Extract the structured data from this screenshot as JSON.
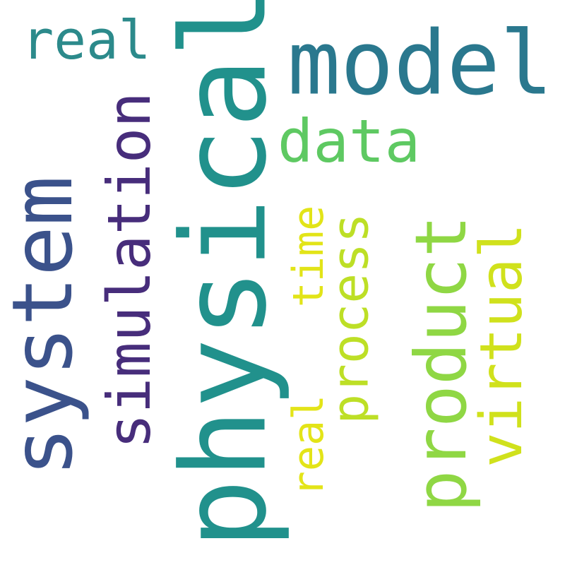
{
  "words": [
    {
      "key": "physical",
      "text": "physical",
      "color": "#21918c"
    },
    {
      "key": "system",
      "text": "system",
      "color": "#3b528b"
    },
    {
      "key": "simulation",
      "text": "simulation",
      "color": "#472d7b"
    },
    {
      "key": "model",
      "text": "model",
      "color": "#2a788e"
    },
    {
      "key": "product",
      "text": "product",
      "color": "#8fd744"
    },
    {
      "key": "virtual",
      "text": "virtual",
      "color": "#d0e11c"
    },
    {
      "key": "data",
      "text": "data",
      "color": "#5ec962"
    },
    {
      "key": "process",
      "text": "process",
      "color": "#bddf26"
    },
    {
      "key": "real_small",
      "text": "real",
      "color": "#2c8a8b"
    },
    {
      "key": "real",
      "text": "real",
      "color": "#e3e418"
    },
    {
      "key": "time",
      "text": "time",
      "color": "#e2e418"
    }
  ]
}
